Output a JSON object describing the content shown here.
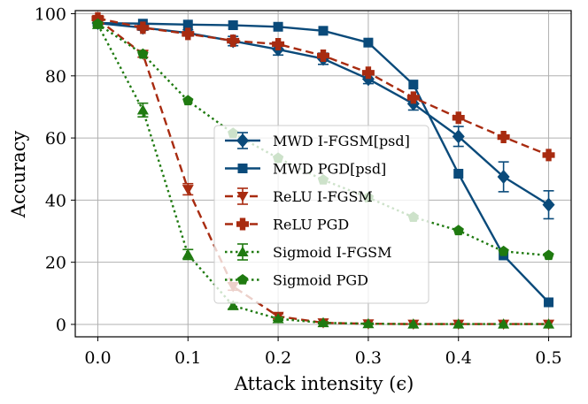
{
  "chart_data": {
    "type": "line",
    "title": "",
    "xlabel": "Attack intensity (ϵ)",
    "ylabel": "Accuracy",
    "xlim": [
      -0.025,
      0.525
    ],
    "ylim": [
      -4,
      101
    ],
    "grid": true,
    "legend_position": "center-right",
    "xticks": [
      0.0,
      0.1,
      0.2,
      0.3,
      0.4,
      0.5
    ],
    "xtick_labels": [
      "0.0",
      "0.1",
      "0.2",
      "0.3",
      "0.4",
      "0.5"
    ],
    "yticks": [
      0,
      20,
      40,
      60,
      80,
      100
    ],
    "ytick_labels": [
      "0",
      "20",
      "40",
      "60",
      "80",
      "100"
    ],
    "x": [
      0.0,
      0.05,
      0.1,
      0.15,
      0.2,
      0.25,
      0.3,
      0.35,
      0.4,
      0.45,
      0.5
    ],
    "series": [
      {
        "name": "MWD I-FGSM[psd]",
        "color": "#0a4a7a",
        "dash": "solid",
        "marker": "diamond",
        "errorbars": true,
        "values": [
          97,
          95.5,
          93.8,
          91.2,
          88.5,
          85.5,
          79,
          71,
          60.5,
          47.5,
          38.5
        ],
        "errors": [
          0.5,
          0.8,
          1.0,
          1.5,
          1.8,
          1.8,
          1.5,
          2.0,
          3.2,
          4.8,
          4.5
        ]
      },
      {
        "name": "MWD PGD[psd]",
        "color": "#0a4a7a",
        "dash": "solid",
        "marker": "square",
        "errorbars": false,
        "values": [
          97,
          96.8,
          96.5,
          96.3,
          95.8,
          94.5,
          90.7,
          77.2,
          48.5,
          22.2,
          7.1
        ]
      },
      {
        "name": "ReLU I-FGSM",
        "color": "#a82b10",
        "dash": "dashed",
        "marker": "triangle-down",
        "errorbars": true,
        "values": [
          98.2,
          87,
          43.5,
          12.2,
          2.6,
          0.5,
          0.2,
          0.1,
          0.1,
          0.1,
          0.1
        ],
        "errors": [
          0.5,
          1.0,
          1.8,
          1.2,
          0.8,
          0.3,
          0.2,
          0.1,
          0.1,
          0.1,
          0.1
        ]
      },
      {
        "name": "ReLU PGD",
        "color": "#a82b10",
        "dash": "dashed",
        "marker": "plus",
        "errorbars": false,
        "values": [
          98.5,
          95.5,
          93.5,
          91.3,
          90.2,
          86.5,
          81,
          73,
          66.5,
          60.3,
          54.5
        ]
      },
      {
        "name": "Sigmoid I-FGSM",
        "color": "#1f7a10",
        "dash": "dotted",
        "marker": "triangle-up",
        "errorbars": true,
        "values": [
          96.5,
          69,
          22.5,
          6,
          1.8,
          0.5,
          0.2,
          0.1,
          0.1,
          0.1,
          0.1
        ],
        "errors": [
          0.5,
          2.2,
          1.6,
          1.0,
          0.5,
          0.3,
          0.2,
          0.1,
          0.1,
          0.1,
          0.1
        ]
      },
      {
        "name": "Sigmoid PGD",
        "color": "#1f7a10",
        "dash": "dotted",
        "marker": "pentagon",
        "errorbars": false,
        "values": [
          96.7,
          87,
          72,
          61.5,
          53.5,
          46.5,
          40.8,
          34.5,
          30.2,
          23.5,
          22.2
        ]
      }
    ]
  }
}
